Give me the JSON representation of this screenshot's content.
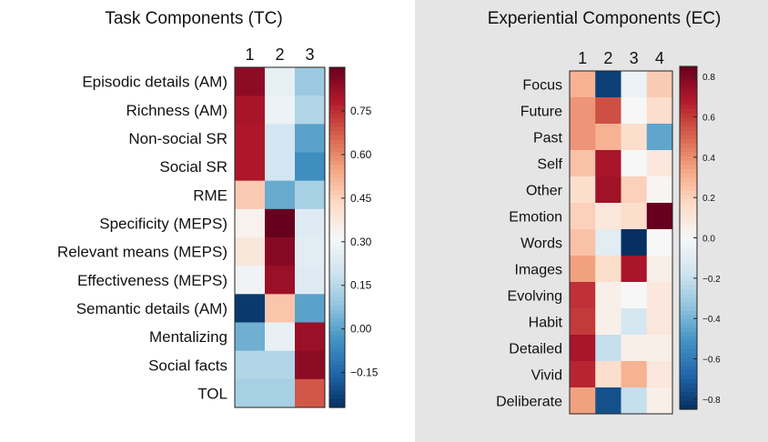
{
  "chart_data": [
    {
      "type": "heatmap",
      "title": "Task Components (TC)",
      "columns": [
        "1",
        "2",
        "3"
      ],
      "rows": [
        "Episodic details (AM)",
        "Richness (AM)",
        "Non-social SR",
        "Social SR",
        "RME",
        "Specificity (MEPS)",
        "Relevant means (MEPS)",
        "Effectiveness (MEPS)",
        "Semantic details (AM)",
        "Mentalizing",
        "Social facts",
        "TOL"
      ],
      "values": [
        [
          0.84,
          0.26,
          0.1
        ],
        [
          0.8,
          0.28,
          0.14
        ],
        [
          0.79,
          0.2,
          0.0
        ],
        [
          0.79,
          0.2,
          -0.05
        ],
        [
          0.47,
          0.02,
          0.12
        ],
        [
          0.34,
          0.9,
          0.24
        ],
        [
          0.38,
          0.85,
          0.25
        ],
        [
          0.29,
          0.82,
          0.24
        ],
        [
          -0.25,
          0.48,
          0.0
        ],
        [
          0.03,
          0.27,
          0.82
        ],
        [
          0.14,
          0.14,
          0.84
        ],
        [
          0.12,
          0.12,
          0.68
        ]
      ],
      "colorbar": {
        "min": -0.27,
        "max": 0.9,
        "ticks": [
          "0.75",
          "0.60",
          "0.45",
          "0.30",
          "0.15",
          "0.00",
          "−0.15"
        ],
        "tick_values": [
          0.75,
          0.6,
          0.45,
          0.3,
          0.15,
          0.0,
          -0.15
        ]
      },
      "colormap": "RdBu_r"
    },
    {
      "type": "heatmap",
      "title": "Experiential Components (EC)",
      "columns": [
        "1",
        "2",
        "3",
        "4"
      ],
      "rows": [
        "Focus",
        "Future",
        "Past",
        "Self",
        "Other",
        "Emotion",
        "Words",
        "Images",
        "Evolving",
        "Habit",
        "Detailed",
        "Vivid",
        "Deliberate"
      ],
      "values": [
        [
          0.3,
          -0.8,
          -0.05,
          0.22
        ],
        [
          0.38,
          0.55,
          0.0,
          0.15
        ],
        [
          0.38,
          0.3,
          0.15,
          -0.45
        ],
        [
          0.25,
          0.7,
          0.0,
          0.1
        ],
        [
          0.15,
          0.72,
          0.2,
          0.02
        ],
        [
          0.2,
          0.1,
          0.15,
          0.85
        ],
        [
          0.25,
          -0.1,
          -0.85,
          0.0
        ],
        [
          0.35,
          0.15,
          0.7,
          0.05
        ],
        [
          0.62,
          0.05,
          0.0,
          0.1
        ],
        [
          0.6,
          0.05,
          -0.15,
          0.1
        ],
        [
          0.7,
          -0.2,
          0.05,
          0.05
        ],
        [
          0.65,
          0.15,
          0.3,
          0.1
        ],
        [
          0.35,
          -0.75,
          -0.2,
          0.05
        ]
      ],
      "colorbar": {
        "min": -0.85,
        "max": 0.85,
        "ticks": [
          "0.8",
          "0.6",
          "0.4",
          "0.2",
          "0.0",
          "−0.2",
          "−0.4",
          "−0.6",
          "−0.8"
        ],
        "tick_values": [
          0.8,
          0.6,
          0.4,
          0.2,
          0.0,
          -0.2,
          -0.4,
          -0.6,
          -0.8
        ]
      },
      "colormap": "RdBu_r"
    }
  ]
}
